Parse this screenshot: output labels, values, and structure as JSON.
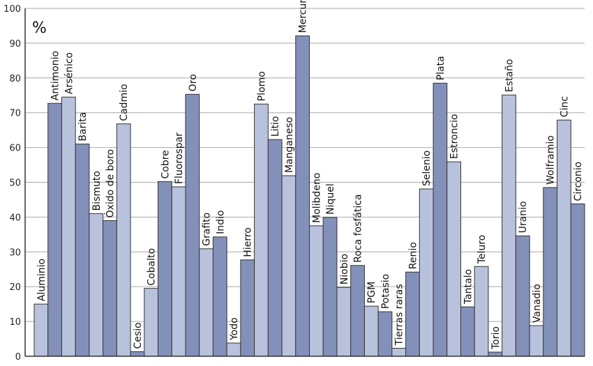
{
  "chart_data": {
    "type": "bar",
    "ylabel": "%",
    "ylim": [
      0,
      100
    ],
    "yticks": [
      0,
      10,
      20,
      30,
      40,
      50,
      60,
      70,
      80,
      90,
      100
    ],
    "grid": true,
    "colors": {
      "light": "#b9c2dc",
      "dark": "#8391ba"
    },
    "categories": [
      "Aluminio",
      "Antimonio",
      "Arsénico",
      "Barita",
      "Bismuto",
      "Óxido de boro",
      "Cadmio",
      "Cesio",
      "Cobalto",
      "Cobre",
      "Fluorospar",
      "Oro",
      "Grafito",
      "Indio",
      "Yodo",
      "Hierro",
      "Plomo",
      "Litio",
      "Manganeso",
      "Mercurio",
      "Molibdeno",
      "Niquel",
      "Niobio",
      "Roca fosfática",
      "PGM",
      "Potasio",
      "Tierras raras",
      "Renio",
      "Selenio",
      "Plata",
      "Estroncio",
      "Tantalo",
      "Teluro",
      "Torio",
      "Estaño",
      "Uranio",
      "Vanadio",
      "Wolframio",
      "Cinc",
      "Circonio"
    ],
    "values": [
      15,
      72.7,
      74.5,
      61,
      41,
      39,
      66.8,
      1.3,
      19.5,
      50.2,
      48.7,
      75.3,
      30.9,
      34.3,
      3.8,
      27.7,
      72.5,
      62.3,
      51.9,
      92.1,
      37.5,
      39.9,
      19.8,
      26.1,
      14.4,
      12.8,
      2.3,
      24.2,
      48.1,
      78.5,
      55.9,
      14.2,
      25.8,
      1.2,
      75.1,
      34.6,
      8.8,
      48.5,
      67.9,
      43.8
    ]
  }
}
